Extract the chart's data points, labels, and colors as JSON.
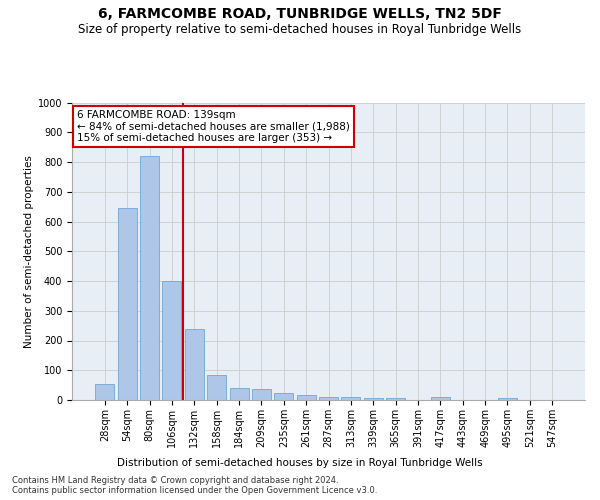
{
  "title": "6, FARMCOMBE ROAD, TUNBRIDGE WELLS, TN2 5DF",
  "subtitle": "Size of property relative to semi-detached houses in Royal Tunbridge Wells",
  "xlabel_bottom": "Distribution of semi-detached houses by size in Royal Tunbridge Wells",
  "ylabel": "Number of semi-detached properties",
  "footnote": "Contains HM Land Registry data © Crown copyright and database right 2024.\nContains public sector information licensed under the Open Government Licence v3.0.",
  "categories": [
    "28sqm",
    "54sqm",
    "80sqm",
    "106sqm",
    "132sqm",
    "158sqm",
    "184sqm",
    "209sqm",
    "235sqm",
    "261sqm",
    "287sqm",
    "313sqm",
    "339sqm",
    "365sqm",
    "391sqm",
    "417sqm",
    "443sqm",
    "469sqm",
    "495sqm",
    "521sqm",
    "547sqm"
  ],
  "values": [
    55,
    645,
    820,
    400,
    240,
    85,
    40,
    37,
    22,
    17,
    10,
    11,
    8,
    8,
    0,
    10,
    0,
    0,
    8,
    0,
    0
  ],
  "bar_color": "#aec6e8",
  "bar_edge_color": "#5a9fd4",
  "property_bin_index": 4,
  "vline_color": "#cc0000",
  "annotation_text": "6 FARMCOMBE ROAD: 139sqm\n← 84% of semi-detached houses are smaller (1,988)\n15% of semi-detached houses are larger (353) →",
  "annotation_box_color": "#ffffff",
  "annotation_box_edge": "#cc0000",
  "ylim": [
    0,
    1000
  ],
  "yticks": [
    0,
    100,
    200,
    300,
    400,
    500,
    600,
    700,
    800,
    900,
    1000
  ],
  "grid_color": "#cccccc",
  "bg_color": "#e8eef5",
  "title_fontsize": 10,
  "subtitle_fontsize": 8.5,
  "axis_label_fontsize": 7.5,
  "tick_fontsize": 7,
  "footnote_fontsize": 6,
  "annot_fontsize": 7.5
}
